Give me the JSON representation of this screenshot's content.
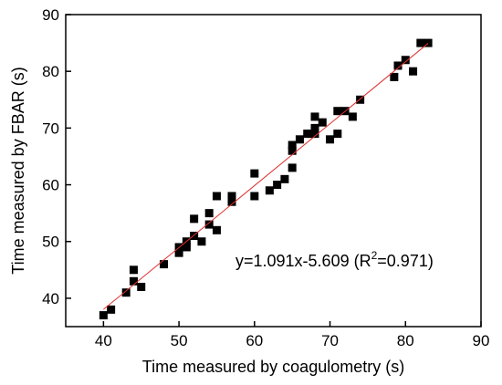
{
  "chart_data": {
    "type": "scatter",
    "xlabel": "Time measured by coagulometry (s)",
    "ylabel": "Time measured by FBAR (s)",
    "xlim": [
      35,
      90
    ],
    "ylim": [
      35,
      90
    ],
    "xticks": [
      40,
      50,
      60,
      70,
      80,
      90
    ],
    "yticks": [
      40,
      50,
      60,
      70,
      80,
      90
    ],
    "grid": false,
    "marker_color": "#000000",
    "fit_line_color": "#e03030",
    "fit": {
      "slope": 1.091,
      "intercept": -5.609,
      "x_range": [
        40,
        83
      ]
    },
    "annotation": {
      "equation": "y=1.091x-5.609 (R",
      "superscript": "2",
      "suffix": "=0.971)"
    },
    "series": [
      {
        "points": [
          [
            40,
            37
          ],
          [
            41,
            38
          ],
          [
            43,
            41
          ],
          [
            44,
            43
          ],
          [
            44,
            45
          ],
          [
            45,
            42
          ],
          [
            48,
            46
          ],
          [
            50,
            48
          ],
          [
            50,
            49
          ],
          [
            51,
            49
          ],
          [
            51,
            50
          ],
          [
            52,
            51
          ],
          [
            52,
            54
          ],
          [
            53,
            50
          ],
          [
            54,
            53
          ],
          [
            54,
            55
          ],
          [
            55,
            52
          ],
          [
            55,
            58
          ],
          [
            57,
            57
          ],
          [
            57,
            58
          ],
          [
            60,
            58
          ],
          [
            60,
            62
          ],
          [
            62,
            59
          ],
          [
            63,
            60
          ],
          [
            64,
            61
          ],
          [
            65,
            63
          ],
          [
            65,
            66
          ],
          [
            65,
            67
          ],
          [
            66,
            68
          ],
          [
            67,
            69
          ],
          [
            67.5,
            69
          ],
          [
            68,
            69
          ],
          [
            68,
            70
          ],
          [
            68,
            72
          ],
          [
            69,
            71
          ],
          [
            70,
            68
          ],
          [
            71,
            69
          ],
          [
            71,
            73
          ],
          [
            72,
            73
          ],
          [
            73,
            72
          ],
          [
            74,
            75
          ],
          [
            78.5,
            79
          ],
          [
            79,
            81
          ],
          [
            80,
            82
          ],
          [
            81,
            80
          ],
          [
            82,
            85
          ],
          [
            83,
            85
          ]
        ]
      }
    ]
  }
}
